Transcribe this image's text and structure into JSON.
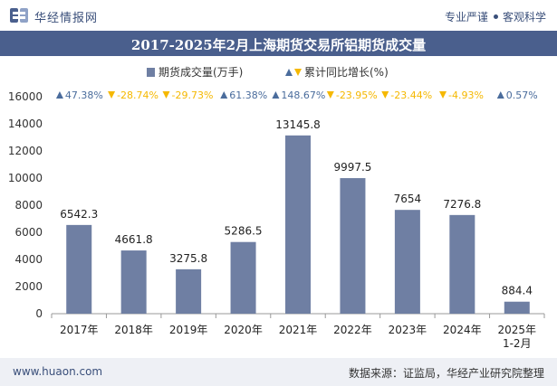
{
  "header": {
    "brand": "华经情报网",
    "slogan_left": "专业严谨",
    "slogan_right": "客观科学",
    "logo_icon": "huajing-logo-icon"
  },
  "title": "2017-2025年2月上海期货交易所铝期货成交量",
  "footer": {
    "site": "www.huaon.com",
    "source": "数据来源：证监局，华经产业研究院整理"
  },
  "colors": {
    "bar": "#6f7fa3",
    "title_bg": "#4a5f8d",
    "up": "#4a6c9c",
    "down": "#f5b800",
    "footer_bg": "#eef0f5"
  },
  "chart_data": {
    "type": "bar",
    "categories": [
      "2017年",
      "2018年",
      "2019年",
      "2020年",
      "2021年",
      "2022年",
      "2023年",
      "2024年",
      "2025年\n1-2月"
    ],
    "series": [
      {
        "name": "期货成交量(万手)",
        "type": "bar",
        "values": [
          6542.3,
          4661.8,
          3275.8,
          5286.5,
          13145.8,
          9997.5,
          7654,
          7276.8,
          884.4
        ],
        "labels": [
          "6542.3",
          "4661.8",
          "3275.8",
          "5286.5",
          "13145.8",
          "9997.5",
          "7654",
          "7276.8",
          "884.4"
        ]
      },
      {
        "name": "累计同比增长(%)",
        "type": "annotation",
        "values": [
          47.38,
          -28.74,
          -29.73,
          61.38,
          148.67,
          -23.95,
          -23.44,
          -4.93,
          0.57
        ],
        "labels": [
          "47.38%",
          "-28.74%",
          "-29.73%",
          "61.38%",
          "148.67%",
          "-23.95%",
          "-23.44%",
          "-4.93%",
          "0.57%"
        ]
      }
    ],
    "ylim": [
      0,
      16000
    ],
    "yticks": [
      "0",
      "2000",
      "4000",
      "6000",
      "8000",
      "10000",
      "12000",
      "14000",
      "16000"
    ],
    "legend_position": "top-center",
    "grid": false
  }
}
